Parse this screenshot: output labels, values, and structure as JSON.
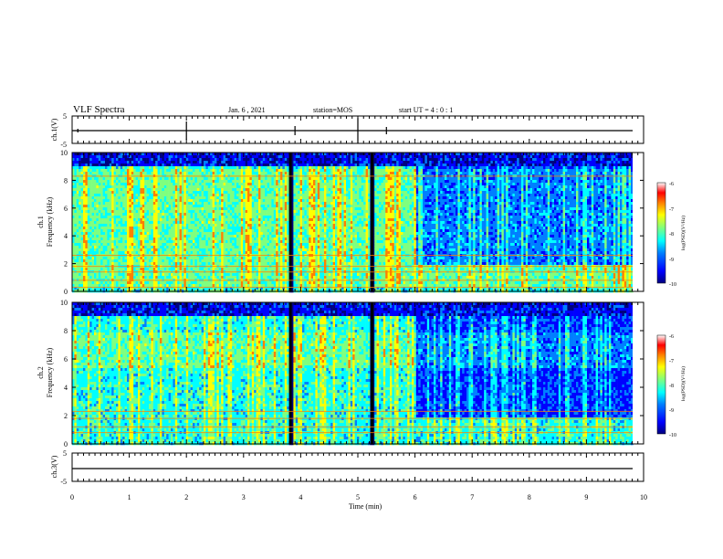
{
  "header": {
    "title": "VLF Spectra",
    "date": "Jan. 6 , 2021",
    "station": "station=MOS",
    "start": "start UT = 4 : 0 : 1"
  },
  "colors": {
    "colormap": [
      "#00007f",
      "#0000ff",
      "#007fff",
      "#00ffff",
      "#7fff7f",
      "#ffff00",
      "#ff7f00",
      "#ff0000",
      "#ffffff"
    ]
  },
  "chart_data": [
    {
      "type": "line",
      "panel": "ch1-waveform",
      "ylabel": "ch.1(V)",
      "yticks": [
        "5",
        "-5"
      ],
      "ylim": [
        -5,
        5
      ],
      "xlim": [
        0,
        10
      ],
      "series": [
        {
          "values": [
            -1,
            -1
          ]
        }
      ]
    },
    {
      "type": "heatmap",
      "panel": "ch1-spectrogram",
      "ylabel_line1": "ch.1",
      "ylabel_line2": "Frequency (kHz)",
      "yticks": [
        "0",
        "2",
        "4",
        "6",
        "8",
        "10"
      ],
      "ylim": [
        0,
        10
      ],
      "xlim": [
        0,
        10
      ],
      "colorbar": {
        "label": "log(PSD)(V²/Hz)",
        "ticks": [
          "-6",
          "-7",
          "-8",
          "-9",
          "-10"
        ],
        "range": [
          -10,
          -6
        ]
      },
      "strong_band_khz": [
        0.5,
        9
      ],
      "bright_lines_khz": [
        0.3,
        0.8,
        1.4,
        1.8,
        2.6,
        8.3
      ],
      "gaps_min": [
        3.82,
        5.25
      ],
      "quiet_after_min": 6.0
    },
    {
      "type": "heatmap",
      "panel": "ch2-spectrogram",
      "ylabel_line1": "ch.2",
      "ylabel_line2": "Frequency (kHz)",
      "yticks": [
        "0",
        "2",
        "4",
        "6",
        "8",
        "10"
      ],
      "ylim": [
        0,
        10
      ],
      "xlim": [
        0,
        10
      ],
      "colorbar": {
        "label": "log(PSD)(V²/Hz)",
        "ticks": [
          "-6",
          "-7",
          "-8",
          "-9",
          "-10"
        ],
        "range": [
          -10,
          -6
        ]
      },
      "strong_band_khz": [
        5.5,
        8
      ],
      "bright_lines_khz": [
        0.8,
        1.2,
        1.8,
        2.3
      ],
      "gaps_min": [
        3.82,
        5.25
      ],
      "quiet_after_min": 6.0
    },
    {
      "type": "line",
      "panel": "ch3-waveform",
      "ylabel": "ch.3(V)",
      "yticks": [
        "5",
        "-5"
      ],
      "ylim": [
        -5,
        5
      ],
      "xlim": [
        0,
        10
      ],
      "series": [
        {
          "values": [
            -1,
            -1
          ]
        }
      ]
    }
  ],
  "xaxis": {
    "label": "Time (min)",
    "ticks": [
      "0",
      "1",
      "2",
      "3",
      "4",
      "5",
      "6",
      "7",
      "8",
      "9",
      "10"
    ]
  }
}
